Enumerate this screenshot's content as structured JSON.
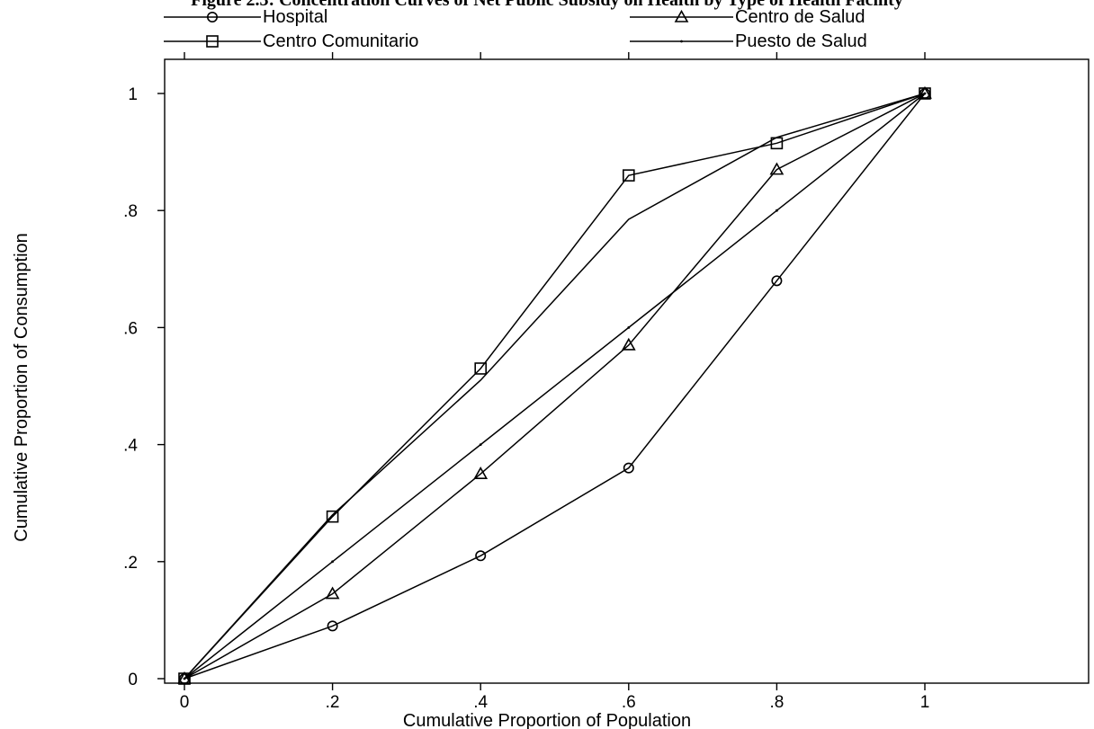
{
  "chart_data": {
    "type": "line",
    "title": "Figure 2.3: Concentration Curves of Net Public Subsidy on Health by Type of Health Facility",
    "xlabel": "Cumulative Proportion of Population",
    "ylabel": "Cumulative Proportion of Consumption",
    "xlim": [
      0,
      1
    ],
    "ylim": [
      0,
      1
    ],
    "x": [
      0,
      0.2,
      0.4,
      0.6,
      0.8,
      1
    ],
    "xticks": [
      0,
      0.2,
      0.4,
      0.6,
      0.8,
      1
    ],
    "xtick_labels": [
      "0",
      ".2",
      ".4",
      ".6",
      ".8",
      "1"
    ],
    "yticks": [
      0,
      0.2,
      0.4,
      0.6,
      0.8,
      1
    ],
    "ytick_labels": [
      "0",
      ".2",
      ".4",
      ".6",
      ".8",
      "1"
    ],
    "grid": false,
    "legend_position": "top",
    "series": [
      {
        "name": "Hospital",
        "marker": "circle",
        "values": [
          0,
          0.09,
          0.21,
          0.36,
          0.68,
          1
        ]
      },
      {
        "name": "Centro de Salud",
        "marker": "triangle",
        "values": [
          0,
          0.145,
          0.35,
          0.57,
          0.87,
          1
        ]
      },
      {
        "name": "Centro Comunitario",
        "marker": "square",
        "values": [
          0,
          0.277,
          0.53,
          0.86,
          0.915,
          1
        ]
      },
      {
        "name": "Puesto de Salud",
        "marker": "dot",
        "values": [
          0,
          0.2,
          0.4,
          0.6,
          0.8,
          1
        ]
      },
      {
        "name": "",
        "marker": "none",
        "values": [
          0,
          0.28,
          0.51,
          0.785,
          0.925,
          1
        ]
      }
    ]
  }
}
